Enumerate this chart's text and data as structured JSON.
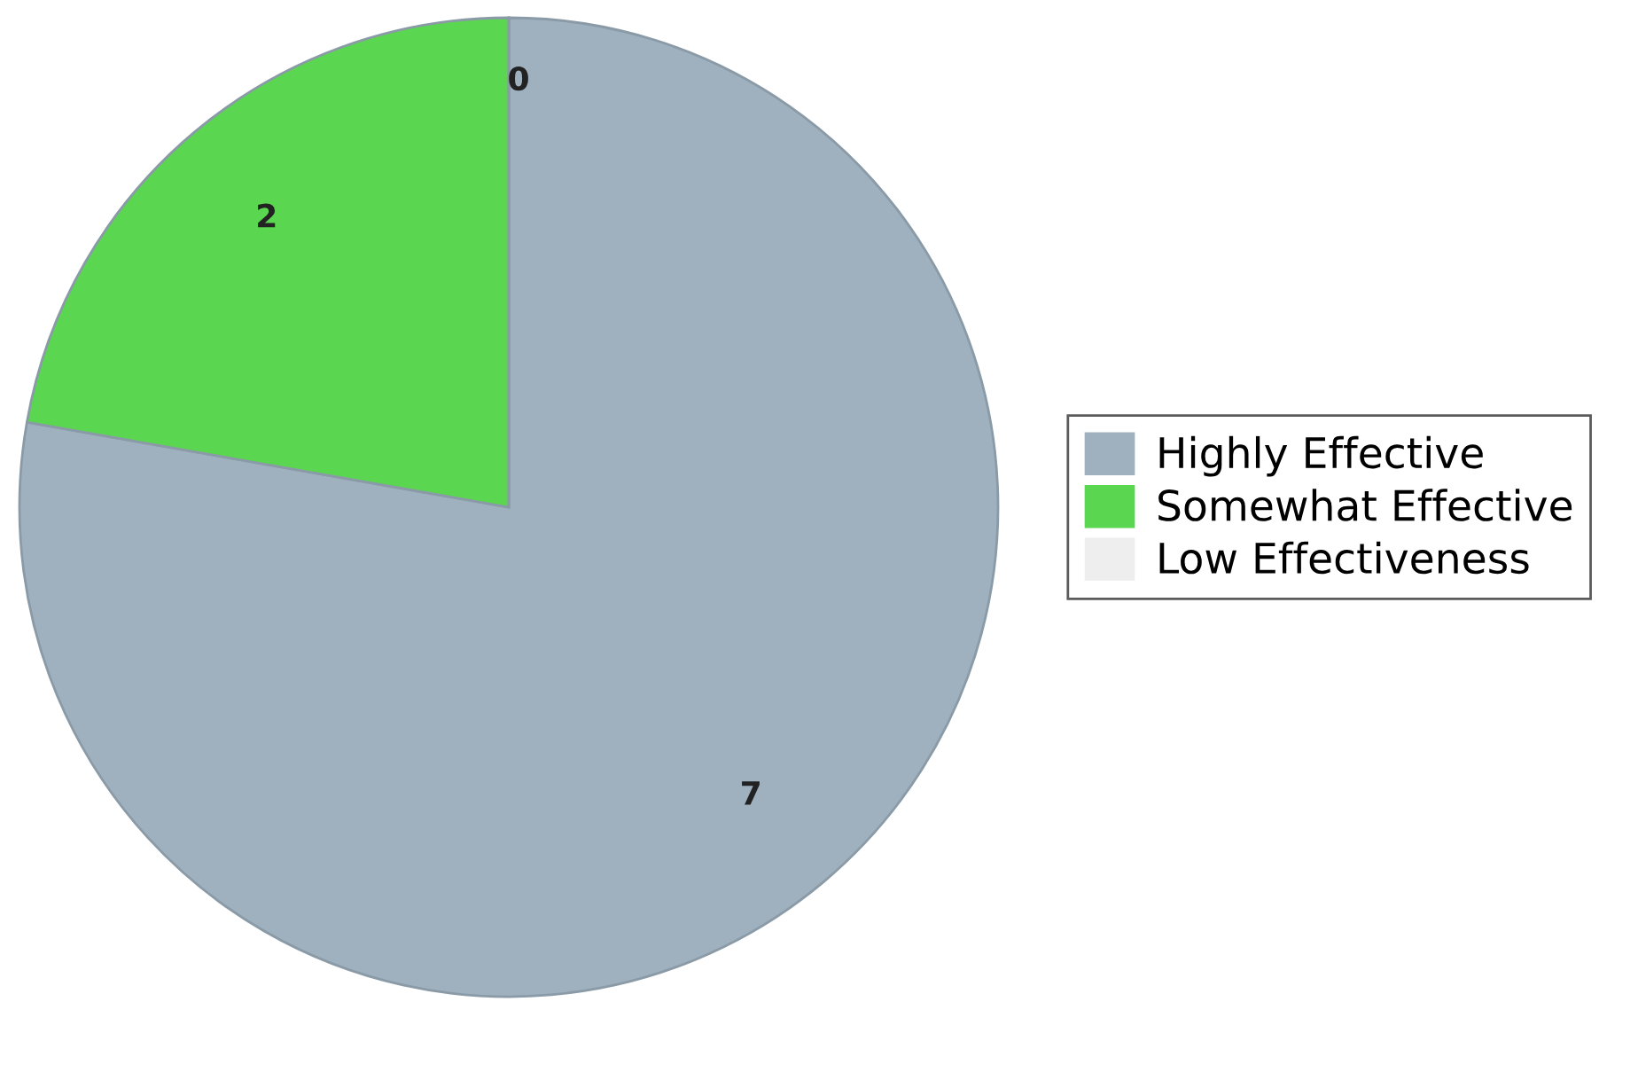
{
  "chart_data": {
    "type": "pie",
    "categories": [
      "Highly Effective",
      "Somewhat Effective",
      "Low Effectiveness"
    ],
    "values": [
      7,
      2,
      0
    ],
    "colors": [
      "#9fb1bf",
      "#5bd650",
      "#eeeeee"
    ],
    "value_labels": [
      "7",
      "2",
      "0"
    ],
    "legend": "right"
  }
}
